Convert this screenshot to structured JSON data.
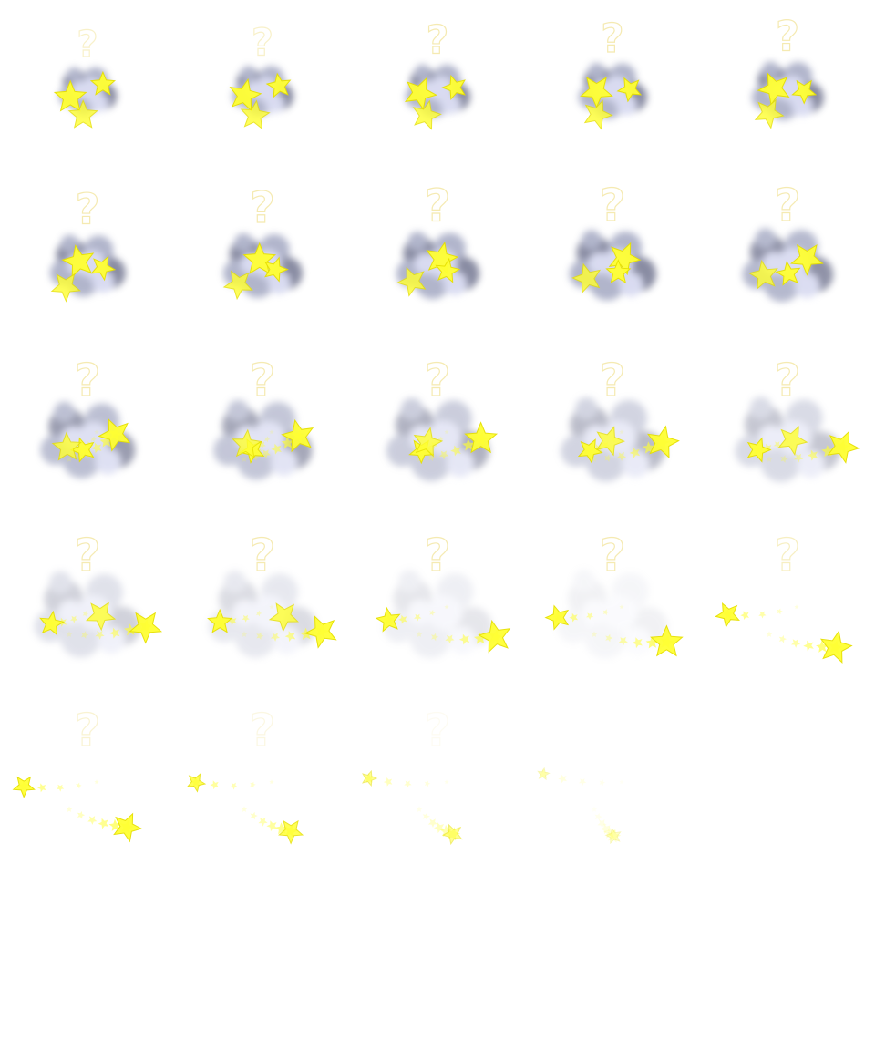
{
  "sheet": {
    "frame_count": 25,
    "columns": 5,
    "rows": 5,
    "glyph": "?",
    "colors": {
      "background": "#ffffff",
      "smoke_dark": "#7d8099",
      "smoke_mid": "#a9adc6",
      "smoke_light": "#d5d8f0",
      "star_fill": "#ffff33",
      "star_edge": "#e6e000",
      "glyph_outline": "#f3e6a0",
      "glyph_fill": "#ffffff"
    },
    "icons": [
      "smoke-cloud-icon",
      "star-icon",
      "question-mark-icon",
      "star-trail-icon"
    ]
  }
}
